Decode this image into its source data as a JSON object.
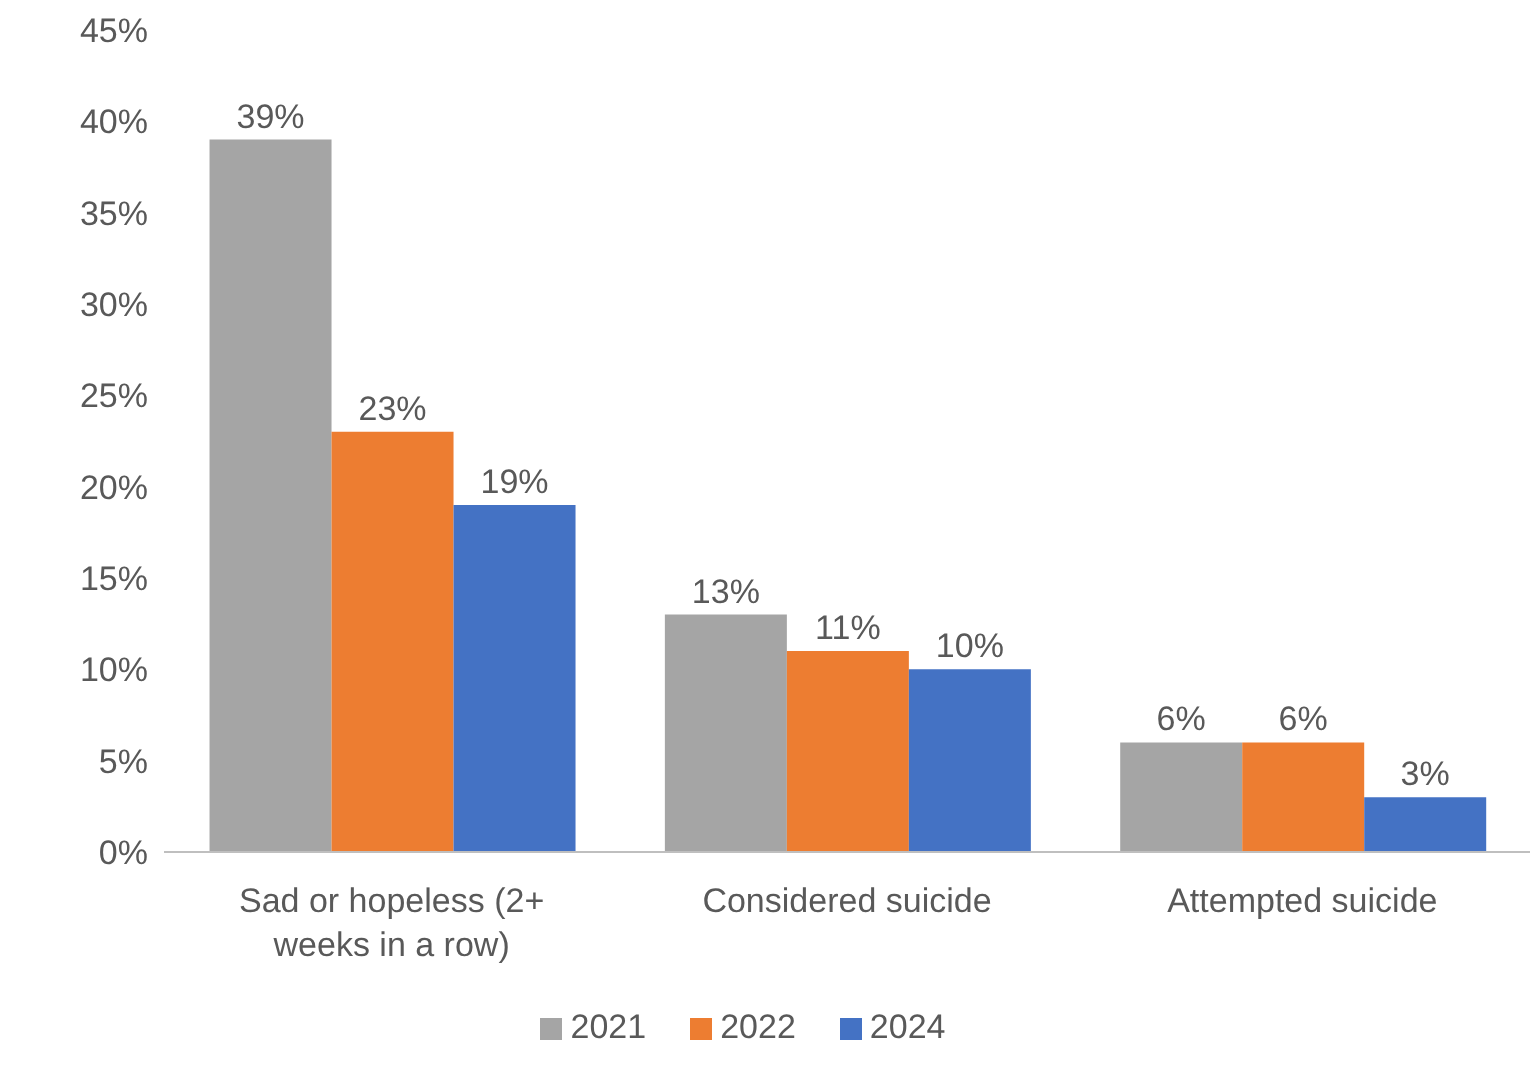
{
  "chart_data": {
    "type": "bar",
    "categories": [
      "Sad or hopeless (2+ weeks in a row)",
      "Considered suicide",
      "Attempted suicide"
    ],
    "series": [
      {
        "name": "2021",
        "color": "#a5a5a5",
        "values": [
          39,
          13,
          6
        ],
        "value_labels": [
          "39%",
          "13%",
          "6%"
        ]
      },
      {
        "name": "2022",
        "color": "#ed7d31",
        "values": [
          23,
          11,
          6
        ],
        "value_labels": [
          "23%",
          "11%",
          "6%"
        ]
      },
      {
        "name": "2024",
        "color": "#4472c4",
        "values": [
          19,
          10,
          3
        ],
        "value_labels": [
          "19%",
          "10%",
          "3%"
        ]
      }
    ],
    "ylim": [
      0,
      45
    ],
    "yticks": [
      {
        "value": 0,
        "label": "0%"
      },
      {
        "value": 5,
        "label": "5%"
      },
      {
        "value": 10,
        "label": "10%"
      },
      {
        "value": 15,
        "label": "15%"
      },
      {
        "value": 20,
        "label": "20%"
      },
      {
        "value": 25,
        "label": "25%"
      },
      {
        "value": 30,
        "label": "30%"
      },
      {
        "value": 35,
        "label": "35%"
      },
      {
        "value": 40,
        "label": "40%"
      },
      {
        "value": 45,
        "label": "45%"
      }
    ],
    "grid": false,
    "legend": "bottom"
  }
}
